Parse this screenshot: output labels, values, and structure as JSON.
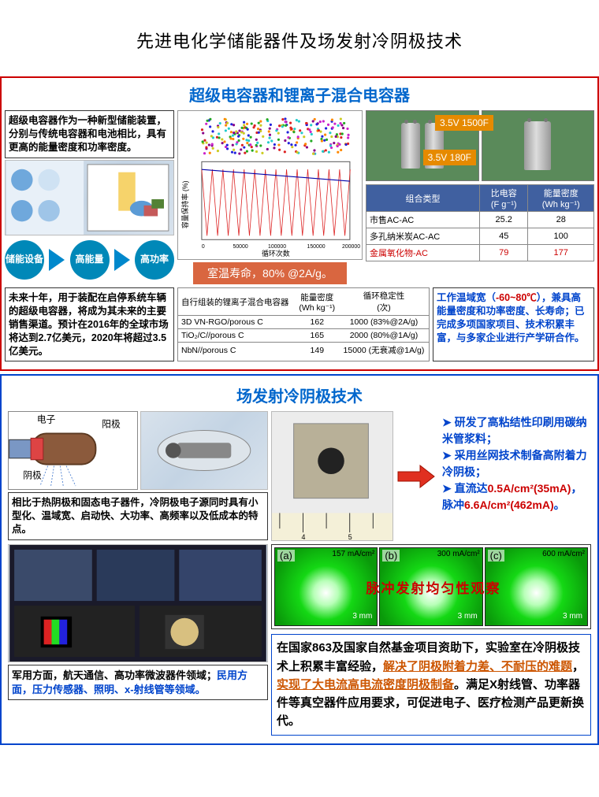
{
  "title": "先进电化学储能器件及场发射冷阴极技术",
  "sec1": {
    "heading": "超级电容器和锂离子混合电容器",
    "intro": "超级电容器作为一种新型储能装置，分别与传统电容器和电池相比，具有更高的能量密度和功率密度。",
    "pills": [
      "储能设备",
      "高能量",
      "高功率"
    ],
    "chart_retention": {
      "ylabel": "容量保持率 (%)",
      "xlabel": "循环次数",
      "xlim": [
        0,
        200000
      ],
      "ylim": [
        0,
        100
      ],
      "ytick_step": 20
    },
    "lifespan": "室温寿命，80% @2A/g。",
    "cap_labels": {
      "big": "3.5V 1500F",
      "small": "3.5V 180F"
    },
    "table_cap": {
      "headers": [
        "组合类型",
        "比电容\n(F g⁻¹)",
        "能量密度\n(Wh kg⁻¹)"
      ],
      "rows": [
        [
          "市售AC-AC",
          "25.2",
          "28"
        ],
        [
          "多孔纳米炭AC-AC",
          "45",
          "100"
        ],
        [
          "金属氧化物-AC",
          "79",
          "177"
        ]
      ],
      "highlight_row": 2
    },
    "forecast": "未来十年，用于装配在启停系统车辆的超级电容器，将成为其未来的主要销售渠道。预计在2016年的全球市场将达到2.7亿美元，2020年将超过3.5亿美元。",
    "table_hybrid": {
      "headers": [
        "自行组装的锂离子混合电容器",
        "能量密度\n(Wh kg⁻¹)",
        "循环稳定性\n(次)"
      ],
      "rows": [
        [
          "3D VN-RGO/porous C",
          "162",
          "1000 (83%@2A/g)"
        ],
        [
          "TiO₂/C//porous C",
          "165",
          "2000 (80%@1A/g)"
        ],
        [
          "NbN//porous C",
          "149",
          "15000 (无衰减@1A/g)"
        ]
      ]
    },
    "temp_range": "-60~80℃",
    "worknote_pre": "工作温域宽（",
    "worknote_post": "），兼具高能量密度和功率密度、长寿命；已完成多项国家项目、技术积累丰富，与多家企业进行产学研合作。"
  },
  "sec2": {
    "heading": "场发射冷阴极技术",
    "vac_labels": {
      "e": "电子",
      "anode": "阳极",
      "cathode": "阴极"
    },
    "compare": "相比于热阴极和固态电子器件，冷阴极电子源同时具有小型化、温域宽、启动快、大功率、高频率以及低成本的特点。",
    "bullets": [
      "研发了高粘结性印刷用碳纳米管浆料；",
      "采用丝网技术制备高附着力冷阴极；"
    ],
    "bullet3_pre": "直流达",
    "bullet3_hl1": "0.5A/cm²(35mA)",
    "bullet3_mid": "，脉冲",
    "bullet3_hl2": "6.6A/cm²(462mA)",
    "bullet3_end": "。",
    "emission": {
      "title": "脉冲发射均匀性观察",
      "cells": [
        {
          "lab": "(a)",
          "val": "157 mA/cm²"
        },
        {
          "lab": "(b)",
          "val": "300 mA/cm²"
        },
        {
          "lab": "(c)",
          "val": "600 mA/cm²"
        }
      ],
      "scale": "3 mm"
    },
    "apps_mil": "军用方面，航天通信、高功率微波器件领域；",
    "apps_civ_lbl": "民用方面",
    "apps_civ": "，压力传感器、照明、x-射线管等领域。",
    "achieve_p1": "在国家863及国家自然基金项目资助下，实验室在冷阴极技术上积累丰富经验，",
    "achieve_hl1": "解决了阴极附着力差、不耐压的难题",
    "achieve_mid": "，",
    "achieve_hl2": "实现了大电流高电流密度阴极制备",
    "achieve_p2": "。满足X射线管、功率器件等真空器件应用要求，可促进电子、医疗检测产品更新换代。"
  }
}
